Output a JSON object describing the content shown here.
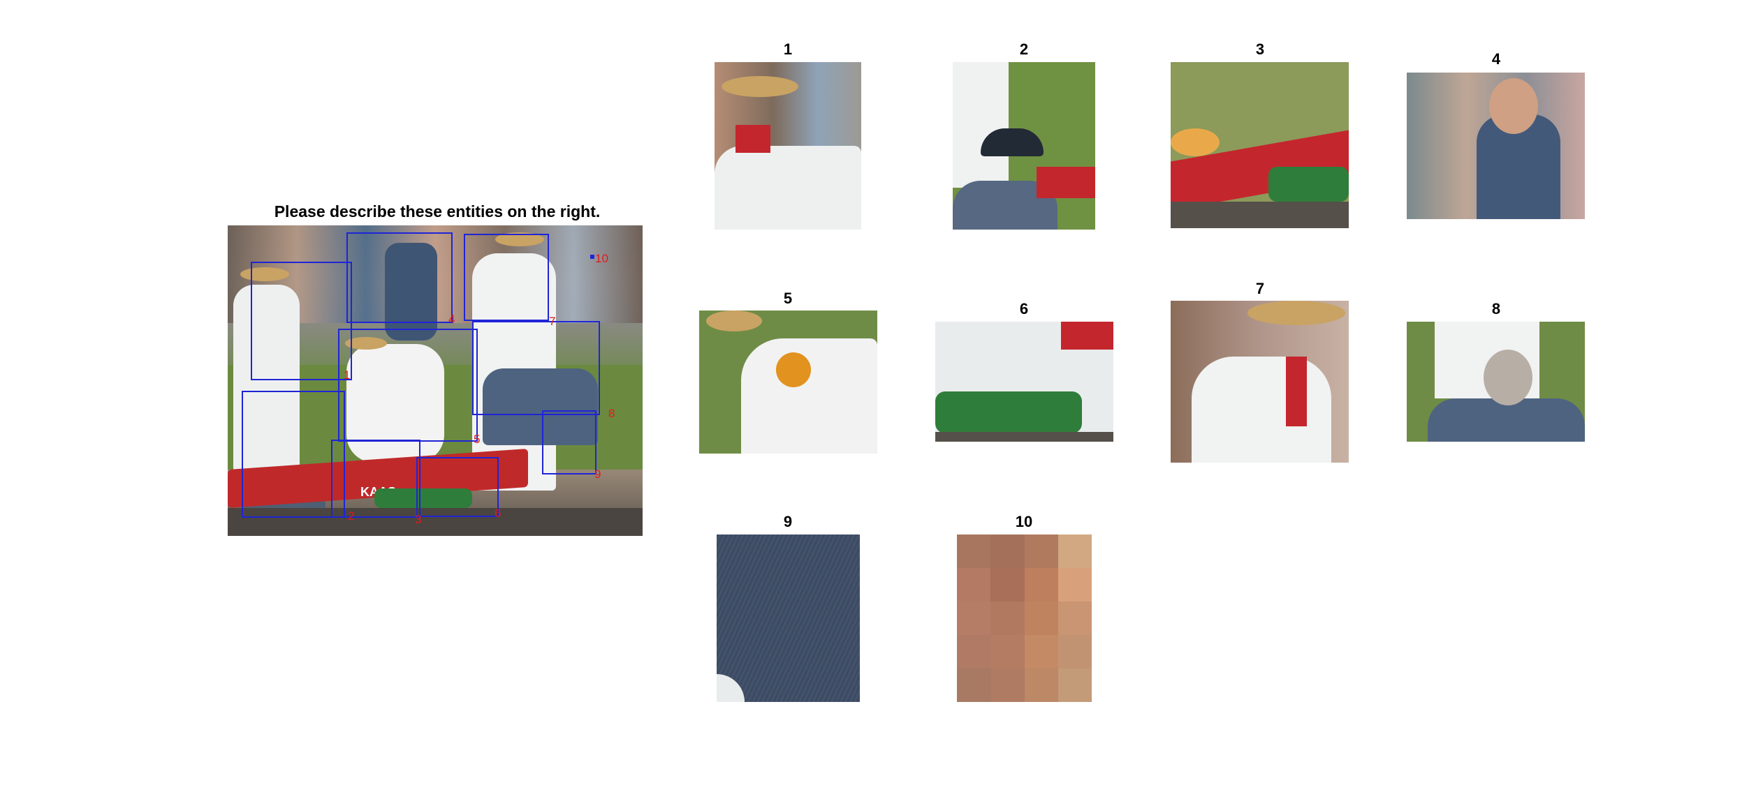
{
  "title": "Please describe these entities on the right.",
  "main_image": {
    "alt": "Cheese market scene with regions outlined",
    "photo_lettering": "KAAS",
    "boxes": [
      {
        "label": "1"
      },
      {
        "label": "2"
      },
      {
        "label": "3"
      },
      {
        "label": "4"
      },
      {
        "label": "5"
      },
      {
        "label": "6"
      },
      {
        "label": "7"
      },
      {
        "label": "8"
      },
      {
        "label": "9"
      },
      {
        "label": "10"
      }
    ]
  },
  "thumbnails": [
    {
      "label": "1"
    },
    {
      "label": "2"
    },
    {
      "label": "3"
    },
    {
      "label": "4"
    },
    {
      "label": "5"
    },
    {
      "label": "6"
    },
    {
      "label": "7"
    },
    {
      "label": "8"
    },
    {
      "label": "9"
    },
    {
      "label": "10"
    }
  ],
  "colors": {
    "box_outline": "#1f24d6",
    "box_label": "#e01b1b",
    "background": "#ffffff"
  }
}
